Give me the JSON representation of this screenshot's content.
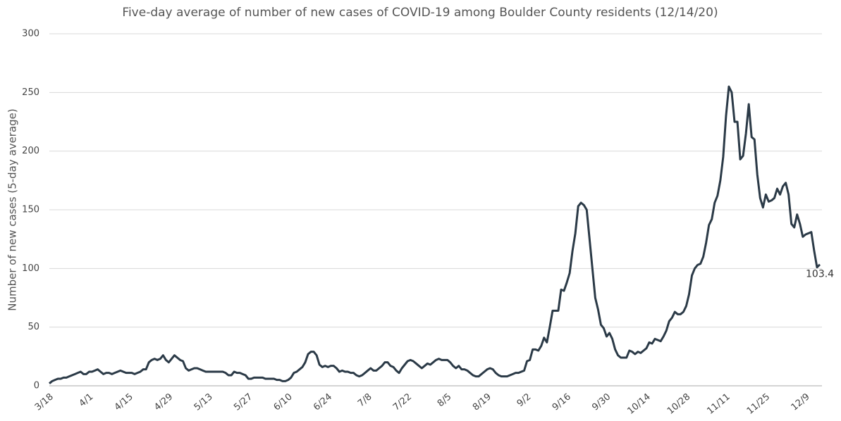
{
  "chart_data": {
    "type": "line",
    "title": "Five-day average of number of new cases of COVID-19 among Boulder County residents (12/14/20)",
    "y_label": "Number of new cases (5-day average)",
    "categories": [
      "3/18",
      null,
      null,
      null,
      null,
      null,
      null,
      null,
      null,
      null,
      null,
      null,
      null,
      null,
      "4/1",
      null,
      null,
      null,
      null,
      null,
      null,
      null,
      null,
      null,
      null,
      null,
      null,
      null,
      "4/15",
      null,
      null,
      null,
      null,
      null,
      null,
      null,
      null,
      null,
      null,
      null,
      null,
      null,
      "4/29",
      null,
      null,
      null,
      null,
      null,
      null,
      null,
      null,
      null,
      null,
      null,
      null,
      null,
      "5/13",
      null,
      null,
      null,
      null,
      null,
      null,
      null,
      null,
      null,
      null,
      null,
      null,
      null,
      "5/27",
      null,
      null,
      null,
      null,
      null,
      null,
      null,
      null,
      null,
      null,
      null,
      null,
      null,
      "6/10",
      null,
      null,
      null,
      null,
      null,
      null,
      null,
      null,
      null,
      null,
      null,
      null,
      null,
      "6/24",
      null,
      null,
      null,
      null,
      null,
      null,
      null,
      null,
      null,
      null,
      null,
      null,
      null,
      "7/8",
      null,
      null,
      null,
      null,
      null,
      null,
      null,
      null,
      null,
      null,
      null,
      null,
      null,
      "7/22",
      null,
      null,
      null,
      null,
      null,
      null,
      null,
      null,
      null,
      null,
      null,
      null,
      null,
      "8/5",
      null,
      null,
      null,
      null,
      null,
      null,
      null,
      null,
      null,
      null,
      null,
      null,
      null,
      "8/19",
      null,
      null,
      null,
      null,
      null,
      null,
      null,
      null,
      null,
      null,
      null,
      null,
      null,
      "9/2",
      null,
      null,
      null,
      null,
      null,
      null,
      null,
      null,
      null,
      null,
      null,
      null,
      null,
      "9/16",
      null,
      null,
      null,
      null,
      null,
      null,
      null,
      null,
      null,
      null,
      null,
      null,
      null,
      "9/30",
      null,
      null,
      null,
      null,
      null,
      null,
      null,
      null,
      null,
      null,
      null,
      null,
      null,
      "10/14",
      null,
      null,
      null,
      null,
      null,
      null,
      null,
      null,
      null,
      null,
      null,
      null,
      null,
      "10/28",
      null,
      null,
      null,
      null,
      null,
      null,
      null,
      null,
      null,
      null,
      null,
      null,
      null,
      "11/11",
      null,
      null,
      null,
      null,
      null,
      null,
      null,
      null,
      null,
      null,
      null,
      null,
      null,
      "11/25",
      null,
      null,
      null,
      null,
      null,
      null,
      null,
      null,
      null,
      null,
      null,
      null,
      null,
      "12/9",
      null,
      null,
      null,
      null,
      null
    ],
    "series": [
      {
        "color": "#2b3a47",
        "values": [
          2,
          4,
          5,
          6,
          6,
          7,
          7,
          8,
          9,
          10,
          11,
          12,
          10,
          10,
          12,
          12,
          13,
          14,
          12,
          10,
          11,
          11,
          10,
          11,
          12,
          13,
          12,
          11,
          11,
          11,
          10,
          11,
          12,
          14,
          14,
          20,
          22,
          23,
          22,
          23,
          26,
          22,
          20,
          23,
          26,
          24,
          22,
          21,
          15,
          13,
          14,
          15,
          15,
          14,
          13,
          12,
          12,
          12,
          12,
          12,
          12,
          12,
          11,
          9,
          9,
          12,
          11,
          11,
          10,
          9,
          6,
          6,
          7,
          7,
          7,
          7,
          6,
          6,
          6,
          6,
          5,
          5,
          4,
          4,
          5,
          7,
          11,
          12,
          14,
          16,
          20,
          27,
          29,
          29,
          26,
          18,
          16,
          17,
          16,
          17,
          17,
          15,
          12,
          13,
          12,
          12,
          11,
          11,
          9,
          8,
          9,
          11,
          13,
          15,
          13,
          13,
          15,
          17,
          20,
          20,
          17,
          16,
          13,
          11,
          15,
          18,
          21,
          22,
          21,
          19,
          17,
          15,
          17,
          19,
          18,
          20,
          22,
          23,
          22,
          22,
          22,
          20,
          17,
          15,
          17,
          14,
          14,
          13,
          11,
          9,
          8,
          8,
          10,
          12,
          14,
          15,
          14,
          11,
          9,
          8,
          8,
          8,
          9,
          10,
          11,
          11,
          12,
          13,
          21,
          22,
          31,
          31,
          30,
          34,
          41,
          37,
          50,
          64,
          64,
          64,
          82,
          81,
          88,
          96,
          115,
          130,
          153,
          156,
          154,
          150,
          125,
          100,
          75,
          65,
          52,
          49,
          42,
          45,
          40,
          31,
          26,
          24,
          24,
          24,
          30,
          29,
          27,
          29,
          28,
          30,
          32,
          37,
          36,
          40,
          39,
          38,
          42,
          47,
          55,
          58,
          63,
          61,
          61,
          63,
          68,
          78,
          94,
          100,
          103,
          104,
          110,
          122,
          137,
          142,
          156,
          162,
          175,
          195,
          230,
          255,
          250,
          225,
          225,
          193,
          196,
          215,
          240,
          212,
          210,
          180,
          160,
          152,
          163,
          157,
          158,
          160,
          168,
          163,
          170,
          173,
          163,
          138,
          135,
          146,
          138,
          127,
          129,
          130,
          131,
          115,
          101,
          103.4
        ]
      }
    ],
    "ylim": [
      0,
      300
    ],
    "yticks": [
      0,
      50,
      100,
      150,
      200,
      250,
      300
    ],
    "grid": true,
    "data_labels": "last"
  }
}
